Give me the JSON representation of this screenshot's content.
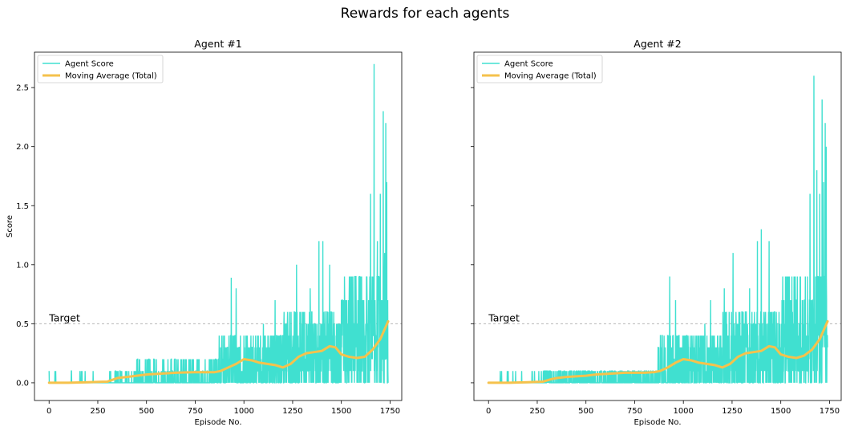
{
  "suptitle": "Rewards for each agents",
  "colors": {
    "agent_score": "#40e0d0",
    "moving_average": "#f5c24c",
    "target_line": "#b5b5b5",
    "axes": "#000000"
  },
  "legend_labels": [
    "Agent Score",
    "Moving Average (Total)"
  ],
  "target_label": "Target",
  "chart_data": [
    {
      "type": "line",
      "title": "Agent #1",
      "xlabel": "Episode No.",
      "ylabel": "Score",
      "xlim": [
        -75,
        1810
      ],
      "ylim": [
        -0.15,
        2.8
      ],
      "xticks": [
        0,
        250,
        500,
        750,
        1000,
        1250,
        1500,
        1750
      ],
      "xtick_labels": [
        "0",
        "250",
        "500",
        "750",
        "1000",
        "1250",
        "1500",
        "1750"
      ],
      "yticks": [
        0.0,
        0.5,
        1.0,
        1.5,
        2.0,
        2.5
      ],
      "ytick_labels": [
        "0.0",
        "0.5",
        "1.0",
        "1.5",
        "2.0",
        "2.5"
      ],
      "legend_position": "upper-left",
      "grid": false,
      "target": 0.5,
      "series": [
        {
          "name": "Agent Score",
          "kind": "noisy",
          "segments": [
            {
              "x0": 0,
              "x1": 300,
              "p": 0.03,
              "levels": [
                0.1
              ]
            },
            {
              "x0": 300,
              "x1": 450,
              "p": 0.12,
              "levels": [
                0.1
              ]
            },
            {
              "x0": 450,
              "x1": 870,
              "p": 0.28,
              "levels": [
                0.1,
                0.2
              ]
            },
            {
              "x0": 870,
              "x1": 1200,
              "p": 0.6,
              "levels": [
                0.1,
                0.2,
                0.3,
                0.4
              ]
            },
            {
              "x0": 1200,
              "x1": 1500,
              "p": 0.7,
              "levels": [
                0.1,
                0.2,
                0.3,
                0.4,
                0.5,
                0.6
              ]
            },
            {
              "x0": 1500,
              "x1": 1740,
              "p": 0.82,
              "levels": [
                0.1,
                0.2,
                0.3,
                0.4,
                0.5,
                0.7,
                0.9
              ]
            }
          ],
          "peaks": [
            {
              "x": 185,
              "y": 0.1
            },
            {
              "x": 340,
              "y": 0.1
            },
            {
              "x": 450,
              "y": 0.2
            },
            {
              "x": 680,
              "y": 0.2
            },
            {
              "x": 935,
              "y": 0.89
            },
            {
              "x": 960,
              "y": 0.8
            },
            {
              "x": 1010,
              "y": 0.4
            },
            {
              "x": 1100,
              "y": 0.5
            },
            {
              "x": 1160,
              "y": 0.7
            },
            {
              "x": 1270,
              "y": 1.0
            },
            {
              "x": 1300,
              "y": 0.6
            },
            {
              "x": 1340,
              "y": 0.8
            },
            {
              "x": 1385,
              "y": 1.2
            },
            {
              "x": 1405,
              "y": 1.2
            },
            {
              "x": 1440,
              "y": 1.0
            },
            {
              "x": 1480,
              "y": 0.5
            },
            {
              "x": 1560,
              "y": 0.6
            },
            {
              "x": 1600,
              "y": 0.7
            },
            {
              "x": 1630,
              "y": 0.89
            },
            {
              "x": 1650,
              "y": 1.6
            },
            {
              "x": 1668,
              "y": 2.7
            },
            {
              "x": 1685,
              "y": 1.2
            },
            {
              "x": 1700,
              "y": 1.6
            },
            {
              "x": 1715,
              "y": 2.3
            },
            {
              "x": 1722,
              "y": 1.1
            },
            {
              "x": 1728,
              "y": 2.2
            },
            {
              "x": 1733,
              "y": 1.7
            }
          ]
        },
        {
          "name": "Moving Average (Total)",
          "kind": "line",
          "x": [
            0,
            100,
            200,
            300,
            350,
            400,
            450,
            500,
            550,
            600,
            650,
            700,
            750,
            800,
            850,
            880,
            920,
            960,
            1000,
            1040,
            1080,
            1120,
            1160,
            1200,
            1240,
            1280,
            1320,
            1360,
            1400,
            1440,
            1470,
            1500,
            1540,
            1580,
            1620,
            1660,
            1700,
            1740
          ],
          "y": [
            0.0,
            0.0,
            0.005,
            0.01,
            0.04,
            0.05,
            0.06,
            0.07,
            0.075,
            0.08,
            0.085,
            0.088,
            0.09,
            0.09,
            0.09,
            0.1,
            0.13,
            0.16,
            0.2,
            0.19,
            0.17,
            0.16,
            0.15,
            0.13,
            0.16,
            0.22,
            0.25,
            0.26,
            0.27,
            0.31,
            0.3,
            0.24,
            0.22,
            0.21,
            0.22,
            0.28,
            0.37,
            0.52
          ]
        }
      ]
    },
    {
      "type": "line",
      "title": "Agent #2",
      "xlabel": "Episode No.",
      "ylabel": "",
      "xlim": [
        -75,
        1810
      ],
      "ylim": [
        -0.15,
        2.8
      ],
      "xticks": [
        0,
        250,
        500,
        750,
        1000,
        1250,
        1500,
        1750
      ],
      "xtick_labels": [
        "0",
        "250",
        "500",
        "750",
        "1000",
        "1250",
        "1500",
        "1750"
      ],
      "yticks": [
        0.0,
        0.5,
        1.0,
        1.5,
        2.0,
        2.5
      ],
      "ytick_labels": [
        "",
        "",
        "",
        "",
        "",
        ""
      ],
      "legend_position": "upper-left",
      "grid": false,
      "target": 0.5,
      "series": [
        {
          "name": "Agent Score",
          "kind": "noisy",
          "segments": [
            {
              "x0": 0,
              "x1": 280,
              "p": 0.03,
              "levels": [
                0.1
              ]
            },
            {
              "x0": 280,
              "x1": 870,
              "p": 0.35,
              "levels": [
                0.1
              ]
            },
            {
              "x0": 870,
              "x1": 1200,
              "p": 0.6,
              "levels": [
                0.1,
                0.2,
                0.3,
                0.4
              ]
            },
            {
              "x0": 1200,
              "x1": 1500,
              "p": 0.7,
              "levels": [
                0.1,
                0.2,
                0.3,
                0.4,
                0.5,
                0.6
              ]
            },
            {
              "x0": 1500,
              "x1": 1740,
              "p": 0.82,
              "levels": [
                0.1,
                0.2,
                0.3,
                0.4,
                0.5,
                0.7,
                0.9
              ]
            }
          ],
          "peaks": [
            {
              "x": 60,
              "y": 0.1
            },
            {
              "x": 170,
              "y": 0.1
            },
            {
              "x": 440,
              "y": 0.1
            },
            {
              "x": 930,
              "y": 0.9
            },
            {
              "x": 960,
              "y": 0.7
            },
            {
              "x": 1000,
              "y": 0.4
            },
            {
              "x": 1060,
              "y": 0.4
            },
            {
              "x": 1110,
              "y": 0.5
            },
            {
              "x": 1140,
              "y": 0.7
            },
            {
              "x": 1210,
              "y": 0.8
            },
            {
              "x": 1255,
              "y": 1.1
            },
            {
              "x": 1300,
              "y": 0.6
            },
            {
              "x": 1340,
              "y": 0.8
            },
            {
              "x": 1380,
              "y": 1.2
            },
            {
              "x": 1400,
              "y": 1.3
            },
            {
              "x": 1440,
              "y": 1.2
            },
            {
              "x": 1480,
              "y": 0.5
            },
            {
              "x": 1560,
              "y": 0.6
            },
            {
              "x": 1610,
              "y": 0.7
            },
            {
              "x": 1650,
              "y": 1.6
            },
            {
              "x": 1670,
              "y": 2.6
            },
            {
              "x": 1685,
              "y": 1.8
            },
            {
              "x": 1700,
              "y": 1.6
            },
            {
              "x": 1712,
              "y": 2.4
            },
            {
              "x": 1720,
              "y": 1.7
            },
            {
              "x": 1728,
              "y": 2.2
            },
            {
              "x": 1733,
              "y": 2.0
            }
          ]
        },
        {
          "name": "Moving Average (Total)",
          "kind": "line",
          "x": [
            0,
            100,
            200,
            280,
            320,
            350,
            400,
            450,
            500,
            550,
            600,
            650,
            700,
            750,
            800,
            850,
            880,
            920,
            960,
            1000,
            1040,
            1080,
            1120,
            1160,
            1200,
            1240,
            1280,
            1320,
            1360,
            1400,
            1440,
            1470,
            1500,
            1540,
            1580,
            1620,
            1660,
            1700,
            1740
          ],
          "y": [
            0.0,
            0.0,
            0.005,
            0.01,
            0.03,
            0.04,
            0.05,
            0.055,
            0.06,
            0.07,
            0.075,
            0.08,
            0.085,
            0.085,
            0.085,
            0.09,
            0.1,
            0.13,
            0.17,
            0.2,
            0.19,
            0.17,
            0.16,
            0.15,
            0.13,
            0.16,
            0.22,
            0.25,
            0.26,
            0.27,
            0.31,
            0.3,
            0.24,
            0.22,
            0.21,
            0.23,
            0.28,
            0.37,
            0.52
          ]
        }
      ]
    }
  ]
}
